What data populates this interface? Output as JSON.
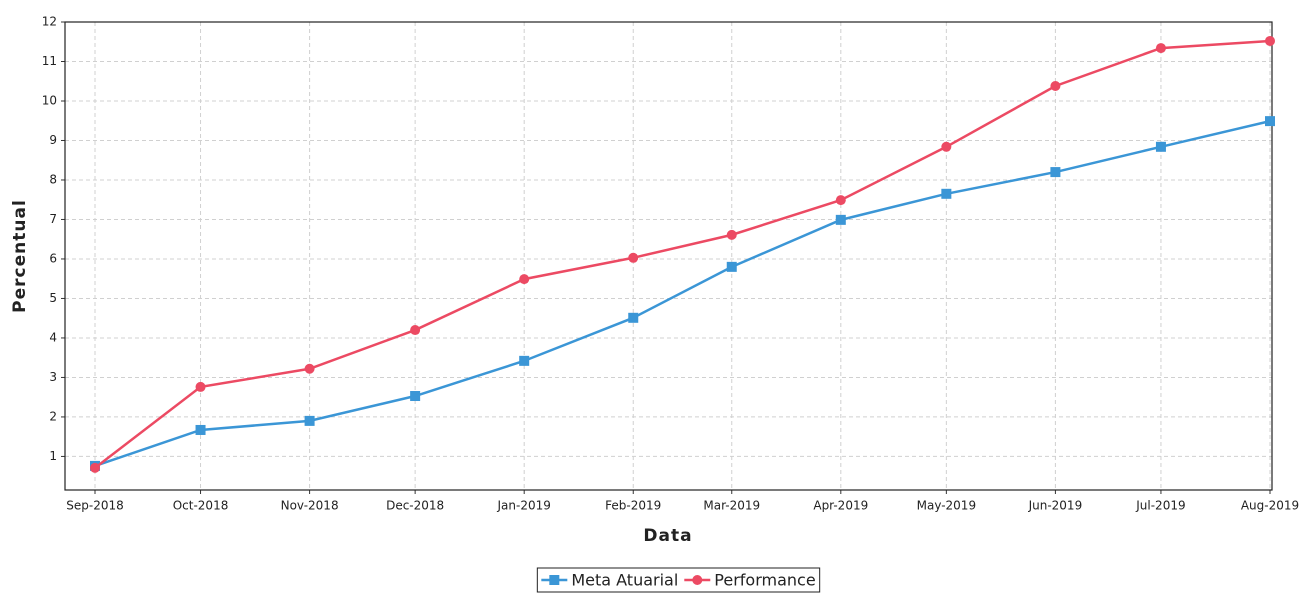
{
  "chart_data": {
    "type": "line",
    "x_label": "Data",
    "y_label": "Percentual",
    "x": [
      "Sep-2018",
      "Oct-2018",
      "Nov-2018",
      "Dec-2018",
      "Jan-2019",
      "Feb-2019",
      "Mar-2019",
      "Apr-2019",
      "May-2019",
      "Jun-2019",
      "Jul-2019",
      "Aug-2019"
    ],
    "xlim": [
      "Sep-2018",
      "Aug-2019"
    ],
    "series": [
      {
        "name": "Meta Atuarial",
        "color": "#3b96d6",
        "marker": "square",
        "values": [
          0.76,
          1.67,
          1.9,
          2.53,
          3.42,
          4.51,
          5.8,
          6.99,
          7.65,
          8.2,
          8.84,
          9.49
        ]
      },
      {
        "name": "Performance",
        "color": "#ec4a63",
        "marker": "circle",
        "values": [
          0.71,
          2.76,
          3.22,
          4.2,
          5.49,
          6.03,
          6.61,
          7.49,
          8.84,
          10.38,
          11.34,
          11.52
        ]
      }
    ],
    "ylim": [
      0.15,
      12
    ],
    "yticks": [
      1,
      2,
      3,
      4,
      5,
      6,
      7,
      8,
      9,
      10,
      11,
      12
    ],
    "grid": true,
    "legend": "bottom"
  }
}
